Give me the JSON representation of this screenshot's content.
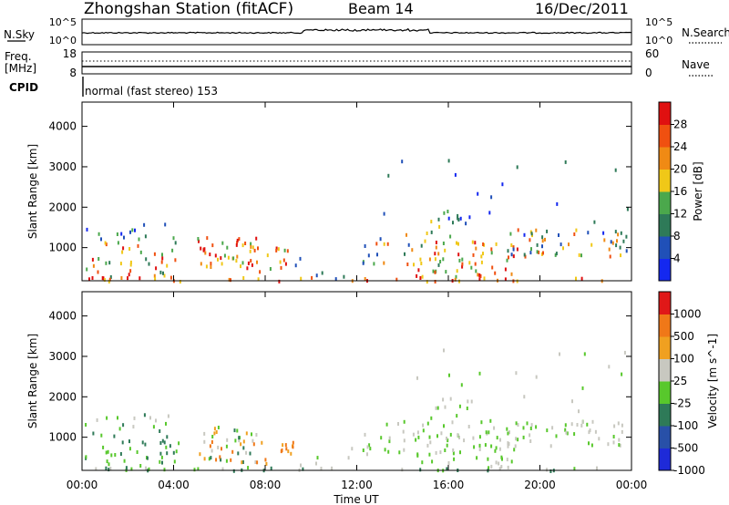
{
  "header": {
    "station": "Zhongshan Station (fitACF)",
    "beam": "Beam 14",
    "date": "16/Dec/2011"
  },
  "sky_panel": {
    "left_label": "N.Sky",
    "left_ticks": [
      "10^5",
      "10^0"
    ],
    "right_label": "N.Search",
    "right_ticks": [
      "10^5",
      "10^0"
    ]
  },
  "freq_panel": {
    "left_label_line1": "Freq.",
    "left_label_line2": "[MHz]",
    "left_ticks": [
      "18",
      "8"
    ],
    "right_label": "Nave",
    "right_ticks": [
      "60",
      "0"
    ]
  },
  "cpid_panel": {
    "label": "CPID",
    "mode_text": "normal (fast stereo) 153"
  },
  "chart_data": [
    {
      "type": "heatmap",
      "name": "power",
      "ylabel": "Slant Range [km]",
      "ylim": [
        180,
        4600
      ],
      "yticks": [
        1000,
        2000,
        3000,
        4000
      ],
      "colorbar_label": "Power [dB]",
      "colorbar_ticks": [
        "4",
        "8",
        "12",
        "16",
        "20",
        "24",
        "28"
      ],
      "colors": [
        "#1428f0",
        "#2050b8",
        "#2e7a58",
        "#4ba84c",
        "#f0c818",
        "#f08a14",
        "#f05010",
        "#e01010"
      ]
    },
    {
      "type": "heatmap",
      "name": "velocity",
      "ylabel": "Slant Range [km]",
      "ylim": [
        180,
        4600
      ],
      "yticks": [
        1000,
        2000,
        3000,
        4000
      ],
      "colorbar_label": "Velocity [m s^-1]",
      "colorbar_ticks": [
        "1000",
        "500",
        "100",
        "25",
        "-25",
        "-100",
        "-500",
        "-1000"
      ],
      "colors": [
        "#1e2ad8",
        "#2850a8",
        "#2e7a58",
        "#58c82c",
        "#c8c8c0",
        "#f0a020",
        "#f07818",
        "#e01818"
      ]
    }
  ],
  "x_axis": {
    "label": "Time UT",
    "ticks": [
      "00:00",
      "04:00",
      "08:00",
      "12:00",
      "16:00",
      "20:00",
      "00:00"
    ]
  }
}
